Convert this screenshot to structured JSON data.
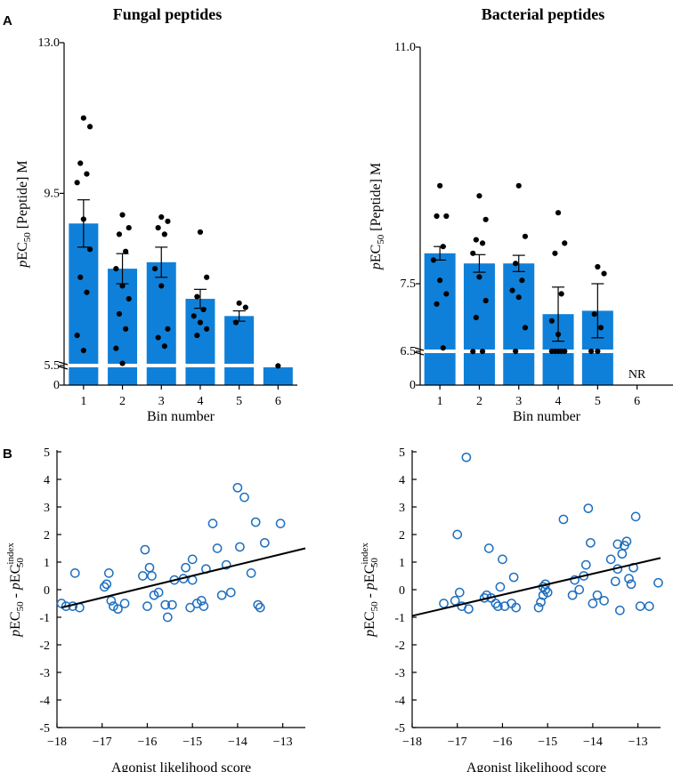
{
  "panels": {
    "A": "A",
    "B": "B"
  },
  "colors": {
    "bar": "#0f80d9",
    "dot": "#000000",
    "scatter": "#1f6fbf",
    "line": "#000000",
    "axis": "#000000"
  },
  "chart_data": [
    {
      "id": "fungal-bar",
      "type": "bar",
      "title": "Fungal peptides",
      "xlabel": "Bin number",
      "ylabel_italic": "p",
      "ylabel_main": "EC",
      "ylabel_sub": "50",
      "ylabel_rest": " [Peptide] M",
      "categories": [
        "1",
        "2",
        "3",
        "4",
        "5",
        "6"
      ],
      "values": [
        8.8,
        7.75,
        7.9,
        7.05,
        6.65,
        5.35
      ],
      "errors": [
        0.55,
        0.35,
        0.35,
        0.22,
        0.12,
        0.0
      ],
      "ylim": [
        0,
        13.0
      ],
      "axis_break": [
        0.0,
        5.5
      ],
      "yticks": [
        "0",
        "5.5",
        "9.5",
        "13.0"
      ],
      "ytick_values": [
        0,
        5.5,
        9.5,
        13.0
      ],
      "points": [
        [
          1,
          11.25
        ],
        [
          1,
          11.05
        ],
        [
          1,
          10.2
        ],
        [
          1,
          9.95
        ],
        [
          1,
          9.75
        ],
        [
          1,
          8.9
        ],
        [
          1,
          8.2
        ],
        [
          1,
          7.55
        ],
        [
          1,
          7.2
        ],
        [
          1,
          6.2
        ],
        [
          1,
          5.85
        ],
        [
          2,
          9.0
        ],
        [
          2,
          8.7
        ],
        [
          2,
          8.55
        ],
        [
          2,
          8.15
        ],
        [
          2,
          7.75
        ],
        [
          2,
          7.35
        ],
        [
          2,
          7.05
        ],
        [
          2,
          6.7
        ],
        [
          2,
          6.35
        ],
        [
          2,
          5.9
        ],
        [
          2,
          5.55
        ],
        [
          3,
          8.95
        ],
        [
          3,
          8.85
        ],
        [
          3,
          8.7
        ],
        [
          3,
          8.55
        ],
        [
          3,
          7.75
        ],
        [
          3,
          7.35
        ],
        [
          3,
          6.35
        ],
        [
          3,
          6.15
        ],
        [
          3,
          5.95
        ],
        [
          4,
          8.6
        ],
        [
          4,
          7.55
        ],
        [
          4,
          7.1
        ],
        [
          4,
          6.8
        ],
        [
          4,
          6.65
        ],
        [
          4,
          6.5
        ],
        [
          4,
          6.35
        ],
        [
          4,
          6.2
        ],
        [
          5,
          6.95
        ],
        [
          5,
          6.85
        ],
        [
          5,
          6.5
        ],
        [
          6,
          5.4
        ]
      ]
    },
    {
      "id": "bacterial-bar",
      "type": "bar",
      "title": "Bacterial peptides",
      "xlabel": "Bin number",
      "ylabel_italic": "p",
      "ylabel_main": "EC",
      "ylabel_sub": "50",
      "ylabel_rest": " [Peptide] M",
      "categories": [
        "1",
        "2",
        "3",
        "4",
        "5",
        "6"
      ],
      "values": [
        7.95,
        7.8,
        7.8,
        7.05,
        7.1,
        null
      ],
      "errors": [
        0.1,
        0.13,
        0.12,
        0.4,
        0.4,
        null
      ],
      "ylim": [
        0,
        11.0
      ],
      "axis_break": [
        0.0,
        6.5
      ],
      "yticks": [
        "0",
        "6.5",
        "7.5",
        "11.0"
      ],
      "ytick_values": [
        0,
        6.5,
        7.5,
        11.0
      ],
      "missing_label": "NR",
      "points": [
        [
          1,
          8.95
        ],
        [
          1,
          8.5
        ],
        [
          1,
          8.5
        ],
        [
          1,
          8.05
        ],
        [
          1,
          7.85
        ],
        [
          1,
          7.55
        ],
        [
          1,
          7.35
        ],
        [
          1,
          7.2
        ],
        [
          1,
          6.55
        ],
        [
          2,
          8.8
        ],
        [
          2,
          8.45
        ],
        [
          2,
          8.15
        ],
        [
          2,
          8.1
        ],
        [
          2,
          7.95
        ],
        [
          2,
          7.6
        ],
        [
          2,
          7.25
        ],
        [
          2,
          7.0
        ],
        [
          2,
          6.48
        ],
        [
          2,
          6.46
        ],
        [
          3,
          8.95
        ],
        [
          3,
          8.2
        ],
        [
          3,
          7.8
        ],
        [
          3,
          7.55
        ],
        [
          3,
          7.4
        ],
        [
          3,
          7.3
        ],
        [
          3,
          6.85
        ],
        [
          3,
          6.5
        ],
        [
          4,
          8.55
        ],
        [
          4,
          8.1
        ],
        [
          4,
          7.95
        ],
        [
          4,
          7.35
        ],
        [
          4,
          6.95
        ],
        [
          4,
          6.75
        ],
        [
          4,
          6.5
        ],
        [
          4,
          6.5
        ],
        [
          4,
          6.5
        ],
        [
          4,
          6.5
        ],
        [
          4,
          6.5
        ],
        [
          5,
          7.75
        ],
        [
          5,
          7.65
        ],
        [
          5,
          7.05
        ],
        [
          5,
          6.85
        ],
        [
          5,
          6.5
        ],
        [
          5,
          6.5
        ]
      ]
    },
    {
      "id": "fungal-scatter",
      "type": "scatter",
      "xlabel": "Agonist likelihood score",
      "ylabel_a": "EC",
      "ylabel_sub": "50",
      "ylabel_mid": " - ",
      "ylabel_b": "EC",
      "ylabel_sup": "index",
      "ylabel_sub2": "50",
      "xlim": [
        -18,
        -12.5
      ],
      "ylim": [
        -5,
        5
      ],
      "xticks": [
        -18,
        -17,
        -16,
        -15,
        -14,
        -13
      ],
      "xtick_labels": [
        "−18",
        "−17",
        "−16",
        "−15",
        "−14",
        "−13"
      ],
      "yticks": [
        -5,
        -4,
        -3,
        -2,
        -1,
        0,
        1,
        2,
        3,
        4,
        5
      ],
      "ytick_labels": [
        "-5",
        "-4",
        "-3",
        "-2",
        "-1",
        "0",
        "1",
        "2",
        "3",
        "4",
        "5"
      ],
      "trend": [
        [
          -17.9,
          -0.65
        ],
        [
          -12.5,
          1.5
        ]
      ],
      "points": [
        [
          -17.9,
          -0.5
        ],
        [
          -17.8,
          -0.6
        ],
        [
          -17.65,
          -0.6
        ],
        [
          -17.6,
          0.6
        ],
        [
          -17.5,
          -0.65
        ],
        [
          -16.95,
          0.1
        ],
        [
          -16.9,
          0.2
        ],
        [
          -16.85,
          0.6
        ],
        [
          -16.8,
          -0.4
        ],
        [
          -16.75,
          -0.6
        ],
        [
          -16.65,
          -0.7
        ],
        [
          -16.5,
          -0.5
        ],
        [
          -16.1,
          0.5
        ],
        [
          -16.05,
          1.45
        ],
        [
          -16.0,
          -0.6
        ],
        [
          -15.95,
          0.8
        ],
        [
          -15.9,
          0.5
        ],
        [
          -15.85,
          -0.2
        ],
        [
          -15.75,
          -0.1
        ],
        [
          -15.6,
          -0.55
        ],
        [
          -15.55,
          -1.0
        ],
        [
          -15.45,
          -0.55
        ],
        [
          -15.4,
          0.35
        ],
        [
          -15.2,
          0.4
        ],
        [
          -15.15,
          0.8
        ],
        [
          -15.05,
          -0.65
        ],
        [
          -15.0,
          0.35
        ],
        [
          -15.0,
          1.1
        ],
        [
          -14.9,
          -0.5
        ],
        [
          -14.8,
          -0.4
        ],
        [
          -14.75,
          -0.6
        ],
        [
          -14.7,
          0.75
        ],
        [
          -14.55,
          2.4
        ],
        [
          -14.45,
          1.5
        ],
        [
          -14.35,
          -0.2
        ],
        [
          -14.25,
          0.9
        ],
        [
          -14.15,
          -0.1
        ],
        [
          -14.0,
          3.7
        ],
        [
          -13.95,
          1.55
        ],
        [
          -13.85,
          3.35
        ],
        [
          -13.7,
          0.6
        ],
        [
          -13.6,
          2.45
        ],
        [
          -13.55,
          -0.55
        ],
        [
          -13.5,
          -0.65
        ],
        [
          -13.4,
          1.7
        ],
        [
          -13.05,
          2.4
        ]
      ]
    },
    {
      "id": "bacterial-scatter",
      "type": "scatter",
      "xlabel": "Agonist likelihood score",
      "ylabel_a": "EC",
      "ylabel_sub": "50",
      "ylabel_mid": " - ",
      "ylabel_b": "EC",
      "ylabel_sup": "index",
      "ylabel_sub2": "50",
      "xlim": [
        -18,
        -12.5
      ],
      "ylim": [
        -5,
        5
      ],
      "xticks": [
        -18,
        -17,
        -16,
        -15,
        -14,
        -13
      ],
      "xtick_labels": [
        "−18",
        "−17",
        "−16",
        "−15",
        "−14",
        "−13"
      ],
      "yticks": [
        -5,
        -4,
        -3,
        -2,
        -1,
        0,
        1,
        2,
        3,
        4,
        5
      ],
      "ytick_labels": [
        "-5",
        "-4",
        "-3",
        "-2",
        "-1",
        "0",
        "1",
        "2",
        "3",
        "4",
        "5"
      ],
      "trend": [
        [
          -18.0,
          -0.95
        ],
        [
          -12.5,
          1.15
        ]
      ],
      "points": [
        [
          -17.3,
          -0.5
        ],
        [
          -17.05,
          -0.4
        ],
        [
          -17.0,
          2.0
        ],
        [
          -16.95,
          -0.1
        ],
        [
          -16.9,
          -0.6
        ],
        [
          -16.8,
          4.8
        ],
        [
          -16.75,
          -0.7
        ],
        [
          -16.4,
          -0.3
        ],
        [
          -16.35,
          -0.2
        ],
        [
          -16.3,
          1.5
        ],
        [
          -16.25,
          -0.3
        ],
        [
          -16.15,
          -0.5
        ],
        [
          -16.1,
          -0.6
        ],
        [
          -16.05,
          0.1
        ],
        [
          -16.0,
          1.1
        ],
        [
          -15.95,
          -0.6
        ],
        [
          -15.8,
          -0.5
        ],
        [
          -15.75,
          0.45
        ],
        [
          -15.7,
          -0.65
        ],
        [
          -15.2,
          -0.65
        ],
        [
          -15.15,
          -0.45
        ],
        [
          -15.1,
          -0.2
        ],
        [
          -15.1,
          0.1
        ],
        [
          -15.05,
          0.2
        ],
        [
          -15.05,
          0.0
        ],
        [
          -15.0,
          -0.1
        ],
        [
          -14.65,
          2.55
        ],
        [
          -14.45,
          -0.2
        ],
        [
          -14.4,
          0.35
        ],
        [
          -14.3,
          0.0
        ],
        [
          -14.2,
          0.5
        ],
        [
          -14.15,
          0.9
        ],
        [
          -14.1,
          2.95
        ],
        [
          -14.05,
          1.7
        ],
        [
          -14.0,
          -0.5
        ],
        [
          -13.9,
          -0.2
        ],
        [
          -13.75,
          -0.4
        ],
        [
          -13.6,
          1.1
        ],
        [
          -13.5,
          0.3
        ],
        [
          -13.45,
          1.65
        ],
        [
          -13.45,
          0.75
        ],
        [
          -13.4,
          -0.75
        ],
        [
          -13.35,
          1.3
        ],
        [
          -13.3,
          1.6
        ],
        [
          -13.25,
          1.75
        ],
        [
          -13.2,
          0.4
        ],
        [
          -13.15,
          0.2
        ],
        [
          -13.1,
          0.8
        ],
        [
          -13.05,
          2.65
        ],
        [
          -12.95,
          -0.6
        ],
        [
          -12.75,
          -0.6
        ],
        [
          -12.55,
          0.25
        ]
      ]
    }
  ]
}
